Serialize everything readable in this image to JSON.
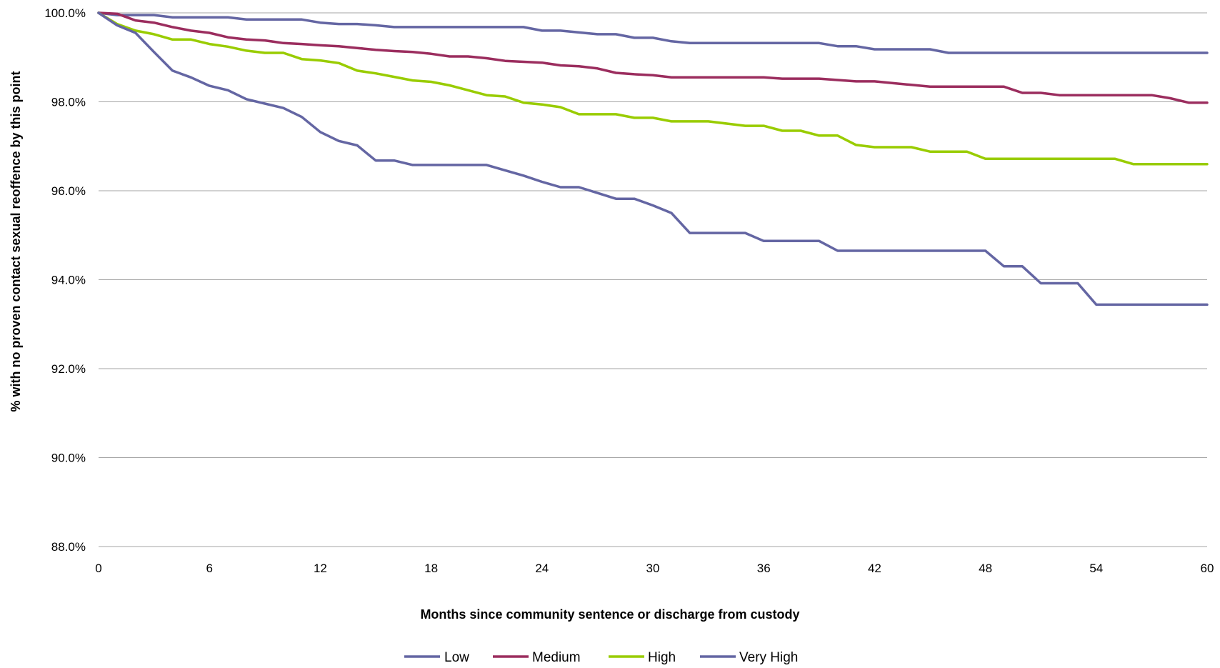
{
  "chart_data": {
    "type": "line",
    "xlabel": "Months since community sentence or discharge from custody",
    "ylabel": "% with no proven contact sexual reoffence by this point",
    "xlim": [
      0,
      60
    ],
    "ylim": [
      88,
      100
    ],
    "x_ticks": [
      0,
      6,
      12,
      18,
      24,
      30,
      36,
      42,
      48,
      54,
      60
    ],
    "y_ticks": [
      88,
      90,
      92,
      94,
      96,
      98,
      100
    ],
    "y_tick_labels": [
      "88.0%",
      "90.0%",
      "92.0%",
      "94.0%",
      "96.0%",
      "98.0%",
      "100.0%"
    ],
    "grid": "horizontal",
    "legend_position": "bottom",
    "x": [
      0,
      1,
      2,
      3,
      4,
      5,
      6,
      7,
      8,
      9,
      10,
      11,
      12,
      13,
      14,
      15,
      16,
      17,
      18,
      19,
      20,
      21,
      22,
      23,
      24,
      25,
      26,
      27,
      28,
      29,
      30,
      31,
      32,
      33,
      34,
      35,
      36,
      37,
      38,
      39,
      40,
      41,
      42,
      43,
      44,
      45,
      46,
      47,
      48,
      49,
      50,
      51,
      52,
      53,
      54,
      55,
      56,
      57,
      58,
      59,
      60
    ],
    "series": [
      {
        "name": "Low",
        "color": "#6466a3",
        "values": [
          100,
          99.95,
          99.95,
          99.95,
          99.9,
          99.9,
          99.9,
          99.9,
          99.85,
          99.85,
          99.85,
          99.85,
          99.78,
          99.75,
          99.75,
          99.72,
          99.68,
          99.68,
          99.68,
          99.68,
          99.68,
          99.68,
          99.68,
          99.68,
          99.6,
          99.6,
          99.56,
          99.52,
          99.52,
          99.44,
          99.44,
          99.36,
          99.32,
          99.32,
          99.32,
          99.32,
          99.32,
          99.32,
          99.32,
          99.32,
          99.25,
          99.25,
          99.18,
          99.18,
          99.18,
          99.18,
          99.1,
          99.1,
          99.1,
          99.1,
          99.1,
          99.1,
          99.1,
          99.1,
          99.1,
          99.1,
          99.1,
          99.1,
          99.1,
          99.1,
          99.1
        ]
      },
      {
        "name": "Medium",
        "color": "#9b2d5e",
        "values": [
          100,
          99.98,
          99.83,
          99.78,
          99.68,
          99.6,
          99.55,
          99.45,
          99.4,
          99.38,
          99.32,
          99.3,
          99.27,
          99.25,
          99.21,
          99.17,
          99.14,
          99.12,
          99.08,
          99.02,
          99.02,
          98.98,
          98.92,
          98.9,
          98.88,
          98.82,
          98.8,
          98.75,
          98.65,
          98.62,
          98.6,
          98.55,
          98.55,
          98.55,
          98.55,
          98.55,
          98.55,
          98.52,
          98.52,
          98.52,
          98.49,
          98.46,
          98.46,
          98.42,
          98.38,
          98.34,
          98.34,
          98.34,
          98.34,
          98.34,
          98.2,
          98.2,
          98.15,
          98.15,
          98.15,
          98.15,
          98.15,
          98.15,
          98.08,
          97.98,
          97.98
        ]
      },
      {
        "name": "High",
        "color": "#99cc00",
        "values": [
          100,
          99.75,
          99.6,
          99.52,
          99.4,
          99.4,
          99.3,
          99.24,
          99.15,
          99.1,
          99.1,
          98.96,
          98.93,
          98.87,
          98.7,
          98.64,
          98.56,
          98.48,
          98.45,
          98.37,
          98.26,
          98.15,
          98.12,
          97.98,
          97.94,
          97.88,
          97.72,
          97.72,
          97.72,
          97.64,
          97.64,
          97.56,
          97.56,
          97.56,
          97.51,
          97.46,
          97.46,
          97.35,
          97.35,
          97.24,
          97.24,
          97.03,
          96.98,
          96.98,
          96.98,
          96.88,
          96.88,
          96.88,
          96.72,
          96.72,
          96.72,
          96.72,
          96.72,
          96.72,
          96.72,
          96.72,
          96.6,
          96.6,
          96.6,
          96.6,
          96.6
        ]
      },
      {
        "name": "Very High",
        "color": "#6466a3",
        "values": [
          100,
          99.72,
          99.55,
          99.12,
          98.7,
          98.55,
          98.36,
          98.26,
          98.06,
          97.96,
          97.86,
          97.66,
          97.32,
          97.12,
          97.02,
          96.68,
          96.68,
          96.58,
          96.58,
          96.58,
          96.58,
          96.58,
          96.46,
          96.34,
          96.2,
          96.08,
          96.08,
          95.95,
          95.82,
          95.82,
          95.67,
          95.5,
          95.05,
          95.05,
          95.05,
          95.05,
          94.87,
          94.87,
          94.87,
          94.87,
          94.65,
          94.65,
          94.65,
          94.65,
          94.65,
          94.65,
          94.65,
          94.65,
          94.65,
          94.3,
          94.3,
          93.92,
          93.92,
          93.92,
          93.44,
          93.44,
          93.44,
          93.44,
          93.44,
          93.44,
          93.44
        ]
      }
    ]
  }
}
